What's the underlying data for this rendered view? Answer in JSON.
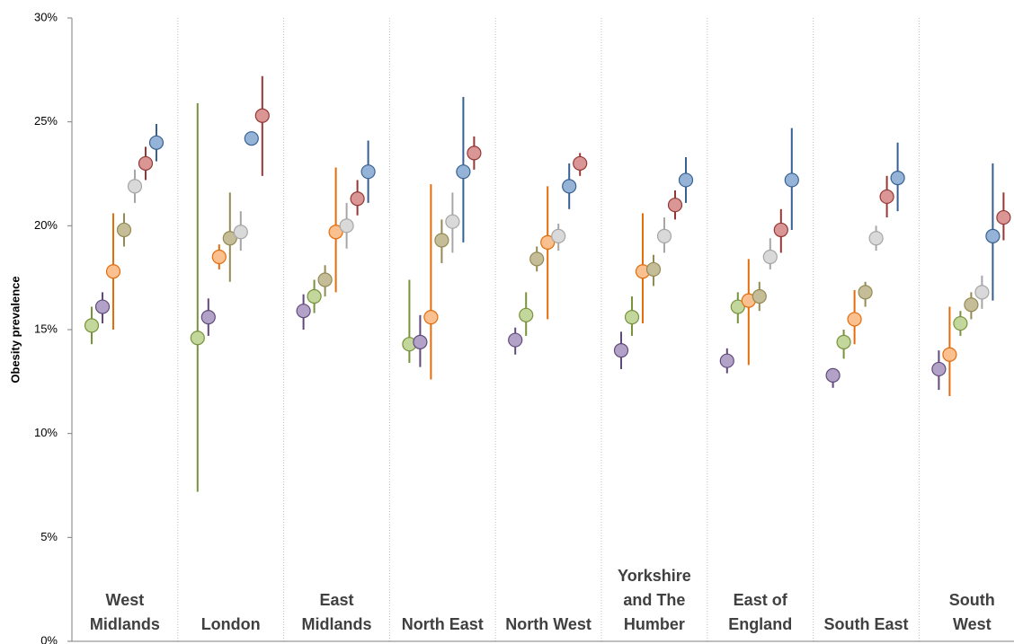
{
  "chart_data": {
    "type": "dot-errorbar",
    "y_label": "Obesity prevalence",
    "categories": [
      "West Midlands",
      "London",
      "East Midlands",
      "North East",
      "North West",
      "Yorkshire and The Humber",
      "East of England",
      "South East",
      "South West"
    ],
    "ylim": [
      0,
      30
    ],
    "yticks": [
      {
        "value": 0,
        "label": "0%"
      },
      {
        "value": 5,
        "label": "5%"
      },
      {
        "value": 10,
        "label": "10%"
      },
      {
        "value": 15,
        "label": "15%"
      },
      {
        "value": 20,
        "label": "20%"
      },
      {
        "value": 25,
        "label": "25%"
      },
      {
        "value": 30,
        "label": "30%"
      }
    ],
    "series": [
      {
        "color": "#c3d69b",
        "line_color": "#77933c",
        "values": [
          15.2,
          14.6,
          16.6,
          14.3,
          15.7,
          15.6,
          16.1,
          14.4,
          15.3
        ],
        "low": [
          14.3,
          7.2,
          15.8,
          13.4,
          14.7,
          14.7,
          15.3,
          13.6,
          14.7
        ],
        "high": [
          16.1,
          25.9,
          17.4,
          17.4,
          16.8,
          16.6,
          16.8,
          15.0,
          15.9
        ]
      },
      {
        "color": "#b3a2c7",
        "line_color": "#604a7b",
        "values": [
          16.1,
          15.6,
          15.9,
          14.4,
          14.5,
          14.0,
          13.5,
          12.8,
          13.1
        ],
        "low": [
          15.3,
          14.7,
          15.0,
          13.2,
          13.8,
          13.1,
          12.9,
          12.2,
          12.1
        ],
        "high": [
          16.8,
          16.5,
          16.7,
          15.7,
          15.1,
          14.9,
          14.1,
          13.1,
          14.0
        ]
      },
      {
        "color": "#fac090",
        "line_color": "#e46c0a",
        "values": [
          17.8,
          18.5,
          19.7,
          15.6,
          19.2,
          17.8,
          16.4,
          15.5,
          13.8
        ],
        "low": [
          15.0,
          17.9,
          16.8,
          12.6,
          15.5,
          15.3,
          13.3,
          14.3,
          11.8
        ],
        "high": [
          20.6,
          19.1,
          22.8,
          22.0,
          21.9,
          20.6,
          18.4,
          16.9,
          16.1
        ]
      },
      {
        "color": "#c4bd97",
        "line_color": "#948a54",
        "values": [
          19.8,
          19.4,
          17.4,
          19.3,
          18.4,
          17.9,
          16.6,
          16.8,
          16.2
        ],
        "low": [
          19.0,
          17.3,
          16.6,
          18.2,
          17.8,
          17.1,
          15.9,
          16.1,
          15.5
        ],
        "high": [
          20.6,
          21.6,
          18.1,
          20.3,
          19.0,
          18.6,
          17.3,
          17.3,
          16.8
        ]
      },
      {
        "color": "#d9d9d9",
        "line_color": "#a6a6a6",
        "values": [
          21.9,
          19.7,
          20.0,
          20.2,
          19.5,
          19.5,
          18.5,
          19.4,
          16.8
        ],
        "low": [
          21.1,
          18.8,
          18.9,
          18.7,
          18.8,
          18.7,
          17.9,
          18.8,
          16.0
        ],
        "high": [
          22.7,
          20.7,
          21.1,
          21.6,
          20.1,
          20.4,
          19.4,
          20.0,
          17.6
        ]
      },
      {
        "color": "#d99694",
        "line_color": "#953735",
        "values": [
          23.0,
          25.3,
          21.3,
          23.5,
          23.0,
          21.0,
          19.8,
          21.4,
          20.4
        ],
        "low": [
          22.2,
          22.4,
          20.5,
          22.7,
          22.4,
          20.3,
          18.7,
          20.4,
          19.3
        ],
        "high": [
          23.8,
          27.2,
          22.2,
          24.3,
          23.5,
          21.7,
          20.8,
          22.4,
          21.6
        ]
      },
      {
        "color": "#95b3d7",
        "line_color": "#376092",
        "values": [
          24.0,
          24.2,
          22.6,
          22.6,
          21.9,
          22.2,
          22.2,
          22.3,
          19.5
        ],
        "low": [
          23.1,
          23.9,
          21.1,
          19.2,
          20.8,
          21.1,
          19.8,
          20.7,
          16.4
        ],
        "high": [
          24.9,
          24.5,
          24.1,
          26.2,
          23.0,
          23.3,
          24.7,
          24.0,
          23.0
        ]
      }
    ]
  }
}
